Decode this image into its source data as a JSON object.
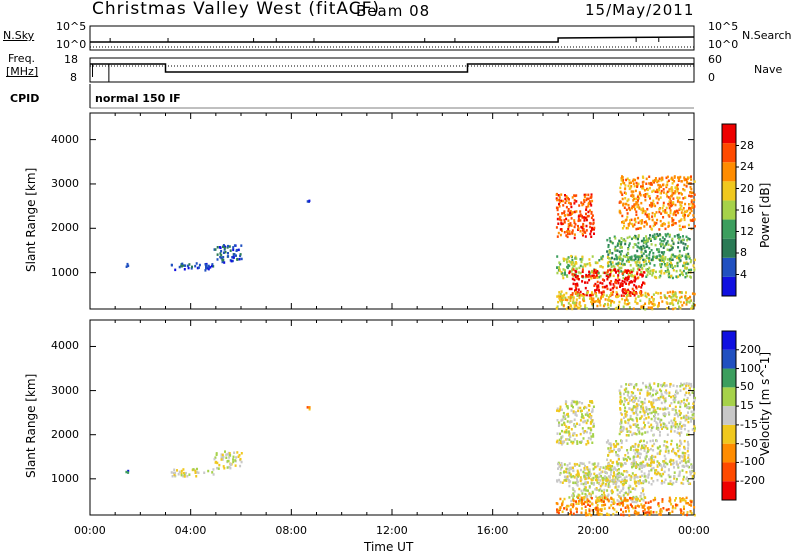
{
  "header": {
    "station": "Christmas Valley West (fitACF)",
    "beam": "Beam 08",
    "date": "15/May/2011"
  },
  "side_labels": {
    "nsky": "N.Sky",
    "freq_line1": "Freq.",
    "freq_line2": "[MHz]",
    "cpid": "CPID",
    "nsearch": "N.Search",
    "nave": "Nave"
  },
  "status_panel": {
    "nsky_ticks": [
      "10^5",
      "10^0"
    ],
    "nsearch_ticks": [
      "10^5",
      "10^0"
    ],
    "freq_ticks": [
      "18",
      "8"
    ],
    "nave_ticks": [
      "60",
      "0"
    ],
    "cpid_text": "normal 150 IF"
  },
  "x_axis": {
    "label": "Time UT",
    "ticks": [
      "00:00",
      "04:00",
      "08:00",
      "12:00",
      "16:00",
      "20:00",
      "00:00"
    ],
    "range_hours": [
      0,
      24
    ]
  },
  "colors": {
    "power_scale": [
      "#1010e0",
      "#2050c0",
      "#2a7a55",
      "#3c9e5e",
      "#a6d24a",
      "#f0c81e",
      "#ff8c00",
      "#ff4a00",
      "#ee0000"
    ],
    "velocity_scale": [
      "#ee0000",
      "#ff4a00",
      "#ff8c00",
      "#f0c81e",
      "#c8c8c8",
      "#a6d24a",
      "#3c9e5e",
      "#2050c0",
      "#1010e0"
    ]
  },
  "chart_data": [
    {
      "type": "heatmap",
      "panel": "power",
      "ylabel": "Slant Range [km]",
      "xlabel": "",
      "xlim": [
        0,
        24
      ],
      "ylim": [
        180,
        4600
      ],
      "yticks": [
        "4000",
        "3000",
        "2000",
        "1000"
      ],
      "colorbar": {
        "label": "Power [dB]",
        "ticks": [
          "28",
          "24",
          "20",
          "16",
          "12",
          "8",
          "4"
        ],
        "range": [
          0,
          32
        ]
      },
      "scatter_regions": [
        {
          "t": [
            1.4,
            1.4
          ],
          "r": [
            1150,
            1250
          ],
          "level": 1
        },
        {
          "t": [
            3.2,
            4.9
          ],
          "r": [
            1080,
            1250
          ],
          "level": 1
        },
        {
          "t": [
            4.9,
            6.0
          ],
          "r": [
            1250,
            1650
          ],
          "level": 1
        },
        {
          "t": [
            8.6,
            8.7
          ],
          "r": [
            2600,
            2680
          ],
          "level": 1
        },
        {
          "t": [
            18.5,
            20.0
          ],
          "r": [
            1800,
            2800
          ],
          "level": 7
        },
        {
          "t": [
            18.5,
            24.0
          ],
          "r": [
            900,
            1400
          ],
          "level": 4
        },
        {
          "t": [
            19.0,
            22.0
          ],
          "r": [
            500,
            1100
          ],
          "level": 8
        },
        {
          "t": [
            20.5,
            23.8
          ],
          "r": [
            1300,
            1900
          ],
          "level": 3
        },
        {
          "t": [
            21.0,
            24.0
          ],
          "r": [
            2000,
            3200
          ],
          "level": 6
        },
        {
          "t": [
            18.5,
            24.0
          ],
          "r": [
            200,
            600
          ],
          "level": 5
        }
      ]
    },
    {
      "type": "heatmap",
      "panel": "velocity",
      "ylabel": "Slant Range [km]",
      "xlabel": "Time UT",
      "xlim": [
        0,
        24
      ],
      "ylim": [
        180,
        4600
      ],
      "yticks": [
        "4000",
        "3000",
        "2000",
        "1000"
      ],
      "colorbar": {
        "label": "Velocity [m s^-1]",
        "ticks": [
          "200",
          "100",
          "50",
          "15",
          "-15",
          "-50",
          "-100",
          "-200"
        ],
        "range": [
          -250,
          250
        ]
      },
      "scatter_regions": [
        {
          "t": [
            1.4,
            1.4
          ],
          "r": [
            1150,
            1250
          ],
          "level": 7
        },
        {
          "t": [
            3.2,
            4.9
          ],
          "r": [
            1080,
            1250
          ],
          "level": 4
        },
        {
          "t": [
            4.9,
            6.0
          ],
          "r": [
            1250,
            1650
          ],
          "level": 4
        },
        {
          "t": [
            8.6,
            8.7
          ],
          "r": [
            2600,
            2680
          ],
          "level": 2
        },
        {
          "t": [
            18.5,
            20.0
          ],
          "r": [
            1800,
            2800
          ],
          "level": 4
        },
        {
          "t": [
            18.5,
            24.0
          ],
          "r": [
            900,
            1400
          ],
          "level": 4
        },
        {
          "t": [
            19.0,
            22.0
          ],
          "r": [
            500,
            1100
          ],
          "level": 4
        },
        {
          "t": [
            20.5,
            23.8
          ],
          "r": [
            1300,
            1900
          ],
          "level": 4
        },
        {
          "t": [
            21.0,
            24.0
          ],
          "r": [
            2000,
            3200
          ],
          "level": 4
        },
        {
          "t": [
            18.5,
            24.0
          ],
          "r": [
            200,
            600
          ],
          "level": 2
        }
      ]
    }
  ]
}
